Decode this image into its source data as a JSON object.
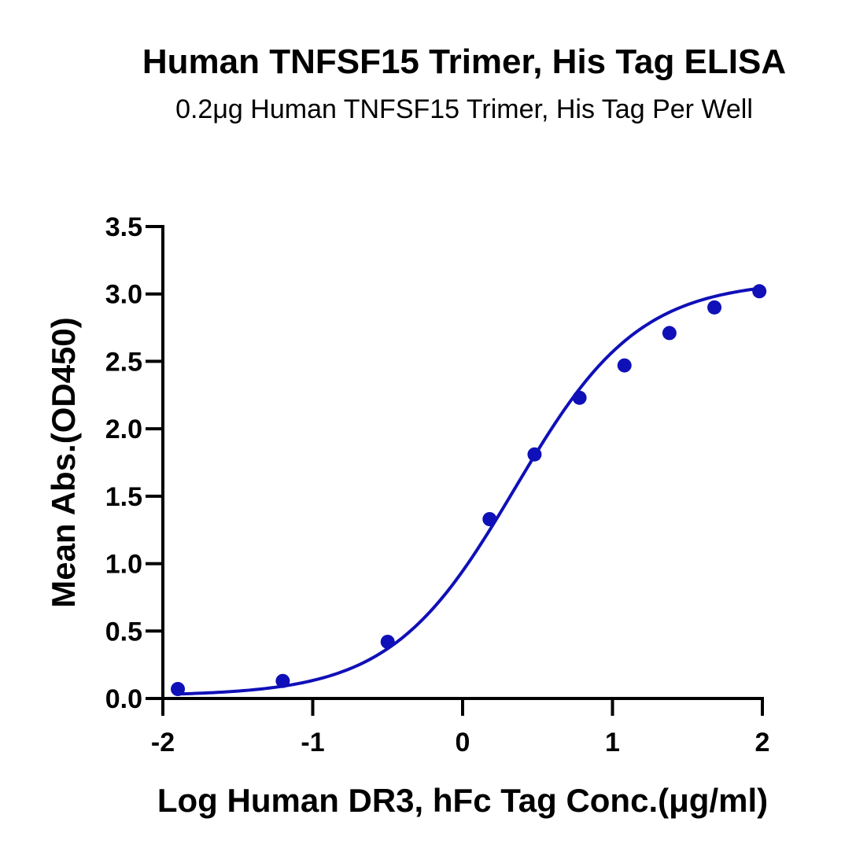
{
  "chart_data": {
    "type": "scatter",
    "title": "Human TNFSF15 Trimer, His Tag ELISA",
    "subtitle": "0.2μg Human TNFSF15 Trimer, His Tag Per Well",
    "xlabel": "Log Human DR3, hFc Tag Conc.(μg/ml)",
    "ylabel": "Mean Abs.(OD450)",
    "xlim": [
      -2,
      2
    ],
    "ylim": [
      0,
      3.5
    ],
    "xticks": [
      -2,
      -1,
      0,
      1,
      2
    ],
    "xtick_labels": [
      "-2",
      "-1",
      "0",
      "1",
      "2"
    ],
    "yticks": [
      0,
      0.5,
      1,
      1.5,
      2,
      2.5,
      3,
      3.5
    ],
    "ytick_labels": [
      "0.0",
      "0.5",
      "1.0",
      "1.5",
      "2.0",
      "2.5",
      "3.0",
      "3.5"
    ],
    "grid": false,
    "color": "#1010b8",
    "series": [
      {
        "x": [
          -1.9,
          -1.2,
          -0.5,
          0.18,
          0.48,
          0.78,
          1.08,
          1.38,
          1.68,
          1.98
        ],
        "y": [
          0.07,
          0.13,
          0.42,
          1.33,
          1.81,
          2.23,
          2.47,
          2.71,
          2.9,
          3.02
        ],
        "fit": {
          "model": "4PL",
          "bottom": 0.02,
          "top": 3.1,
          "log_ec50": 0.35,
          "hill_slope": 1.05,
          "x_range": [
            -1.9,
            2.0
          ]
        }
      }
    ]
  }
}
